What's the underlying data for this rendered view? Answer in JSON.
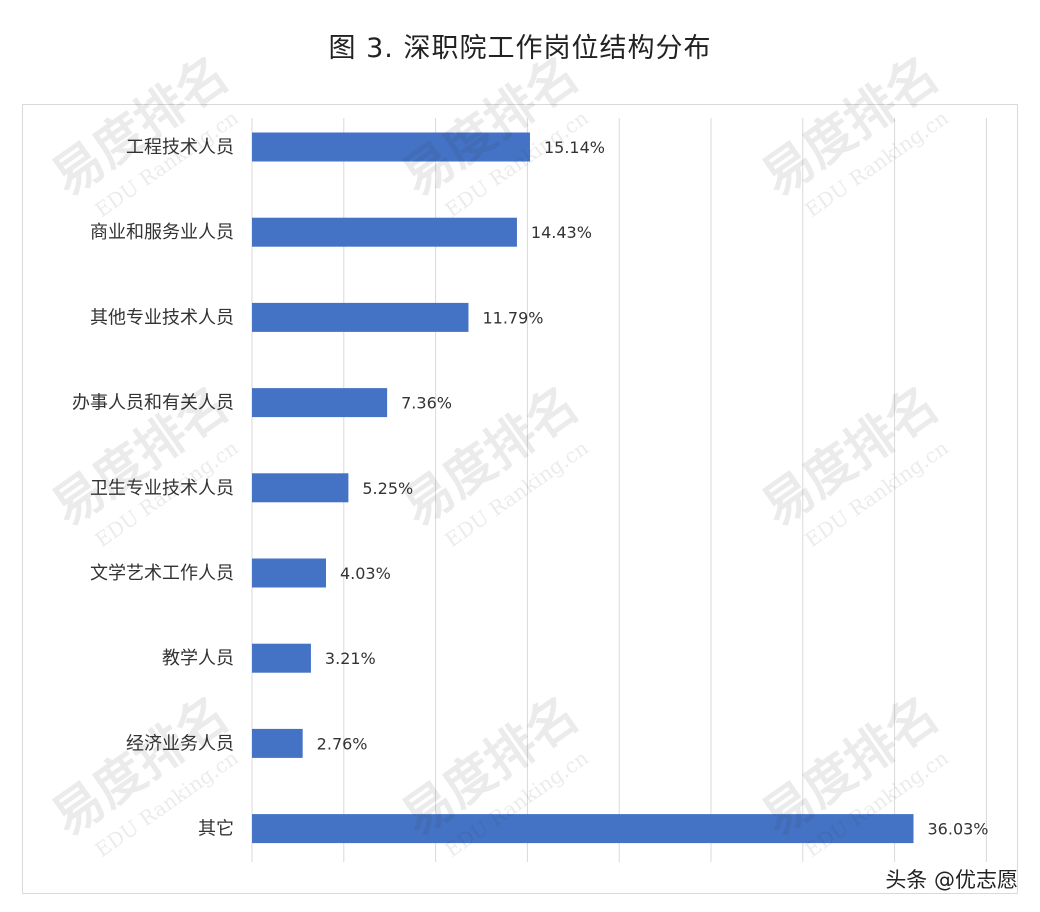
{
  "chart_data": {
    "type": "bar",
    "orientation": "horizontal",
    "title": "图 3. 深职院工作岗位结构分布",
    "categories": [
      "工程技术人员",
      "商业和服务业人员",
      "其他专业技术人员",
      "办事人员和有关人员",
      "卫生专业技术人员",
      "文学艺术工作人员",
      "教学人员",
      "经济业务人员",
      "其它"
    ],
    "values": [
      15.14,
      14.43,
      11.79,
      7.36,
      5.25,
      4.03,
      3.21,
      2.76,
      36.03
    ],
    "value_labels": [
      "15.14%",
      "14.43%",
      "11.79%",
      "7.36%",
      "5.25%",
      "4.03%",
      "3.21%",
      "2.76%",
      "36.03%"
    ],
    "xlim": [
      0,
      40
    ],
    "x_tick_step": 5,
    "grid": true,
    "bar_color": "#4472c4"
  },
  "watermark": {
    "brand": "易度排名",
    "sub": "EDU Ranking.cn",
    "footer": "头条 @优志愿"
  }
}
